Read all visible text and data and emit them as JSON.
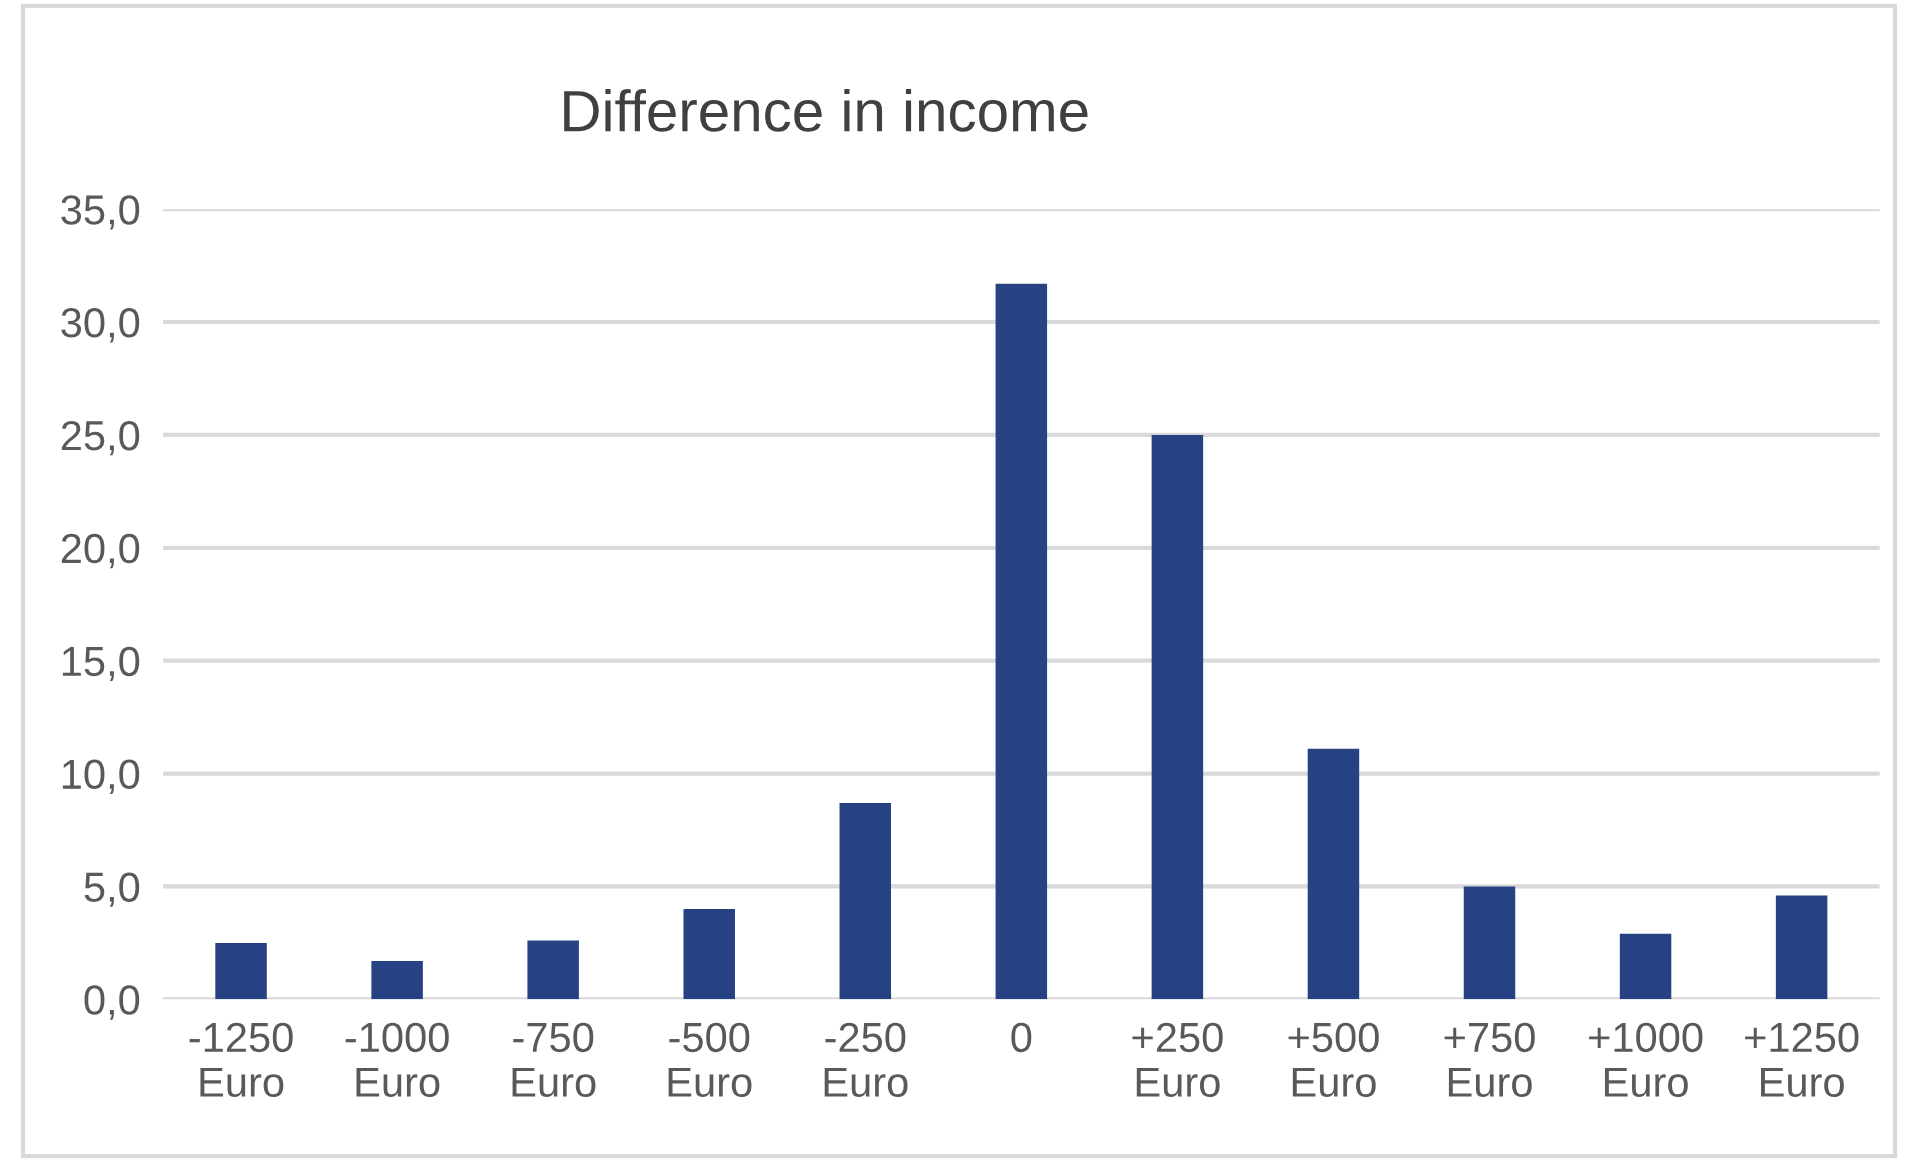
{
  "chart_data": {
    "type": "bar",
    "title": "Difference in income",
    "categories": [
      "-1250\nEuro",
      "-1000\nEuro",
      "-750\nEuro",
      "-500\nEuro",
      "-250\nEuro",
      "0",
      "+250\nEuro",
      "+500\nEuro",
      "+750\nEuro",
      "+1000\nEuro",
      "+1250\nEuro"
    ],
    "values": [
      2.5,
      1.7,
      2.6,
      4.0,
      8.7,
      31.7,
      25.0,
      11.1,
      5.0,
      2.9,
      4.6
    ],
    "color": "#264283",
    "ylim": [
      0,
      35
    ],
    "yticks": [
      {
        "value": 0,
        "label": "0,0"
      },
      {
        "value": 5,
        "label": "5,0"
      },
      {
        "value": 10,
        "label": "10,0"
      },
      {
        "value": 15,
        "label": "15,0"
      },
      {
        "value": 20,
        "label": "20,0"
      },
      {
        "value": 25,
        "label": "25,0"
      },
      {
        "value": 30,
        "label": "30,0"
      },
      {
        "value": 35,
        "label": "35,0"
      }
    ],
    "grid": "y",
    "legend": false
  }
}
